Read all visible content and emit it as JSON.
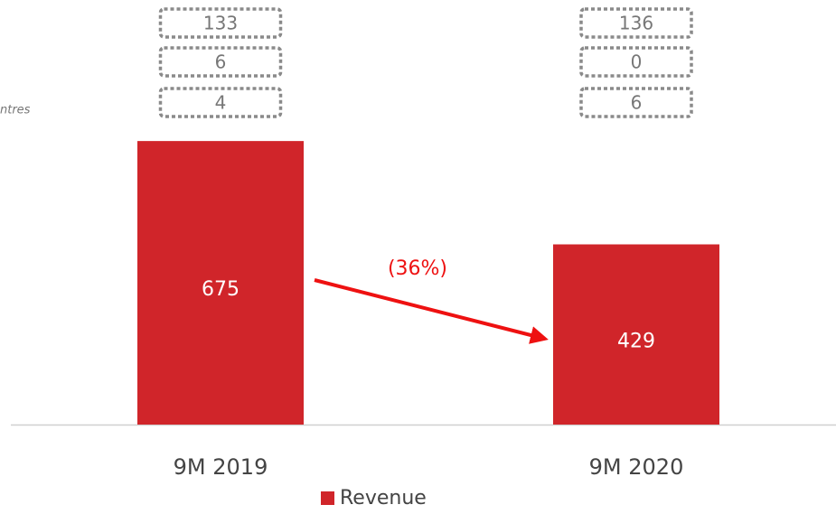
{
  "chart_data": {
    "type": "bar",
    "categories": [
      "9M 2019",
      "9M 2020"
    ],
    "series": [
      {
        "name": "Revenue",
        "color": "#d0252a",
        "values": [
          675,
          429
        ]
      }
    ],
    "ylim": [
      0,
      1000
    ],
    "box_values": [
      [
        133,
        6,
        4
      ],
      [
        136,
        0,
        6
      ]
    ],
    "change_label": "(36%)",
    "side_label": "ntres"
  }
}
